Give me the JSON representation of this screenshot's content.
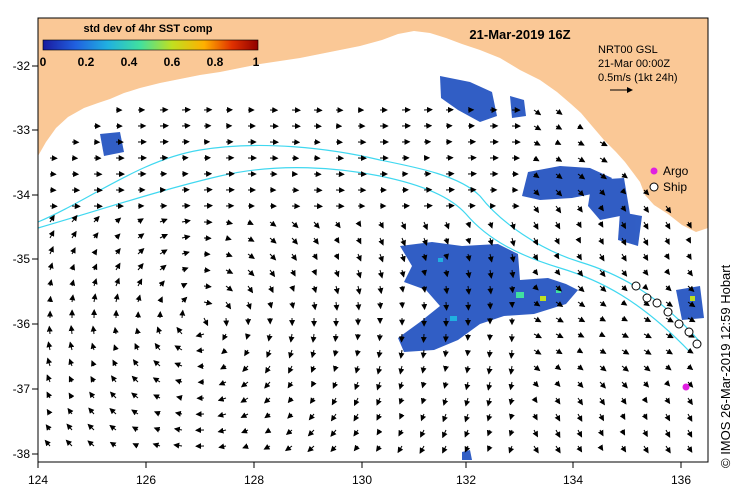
{
  "title": "21-Mar-2019 16Z",
  "colorbar": {
    "label": "std dev of 4hr SST comp",
    "ticks": [
      "0",
      "0.2",
      "0.4",
      "0.6",
      "0.8",
      "1"
    ],
    "stops": [
      "#1a1a9e",
      "#2060e0",
      "#20b0e0",
      "#40e0a0",
      "#c0e020",
      "#ffb000",
      "#e03000",
      "#900000"
    ]
  },
  "vector_key": {
    "line1": "NRT00 GSL",
    "line2": "21-Mar 00:00Z",
    "line3": "0.5m/s (1kt 24h)"
  },
  "legend": {
    "argo": {
      "label": "Argo",
      "color": "#e020e0"
    },
    "ship": {
      "label": "Ship"
    }
  },
  "axes": {
    "lon_ticks": [
      "124",
      "126",
      "128",
      "130",
      "132",
      "134",
      "136"
    ],
    "lat_ticks": [
      "-32",
      "-33",
      "-34",
      "-35",
      "-36",
      "-37",
      "-38"
    ],
    "lon_range": [
      124,
      136.5
    ],
    "lat_range": [
      -38.1,
      -31.4
    ]
  },
  "credit": "© IMOS 26-Mar-2019 12:59 Hobart",
  "colors": {
    "land": "#fac896",
    "contour": "#40d8f0",
    "sst_patch": "#2050c0"
  }
}
